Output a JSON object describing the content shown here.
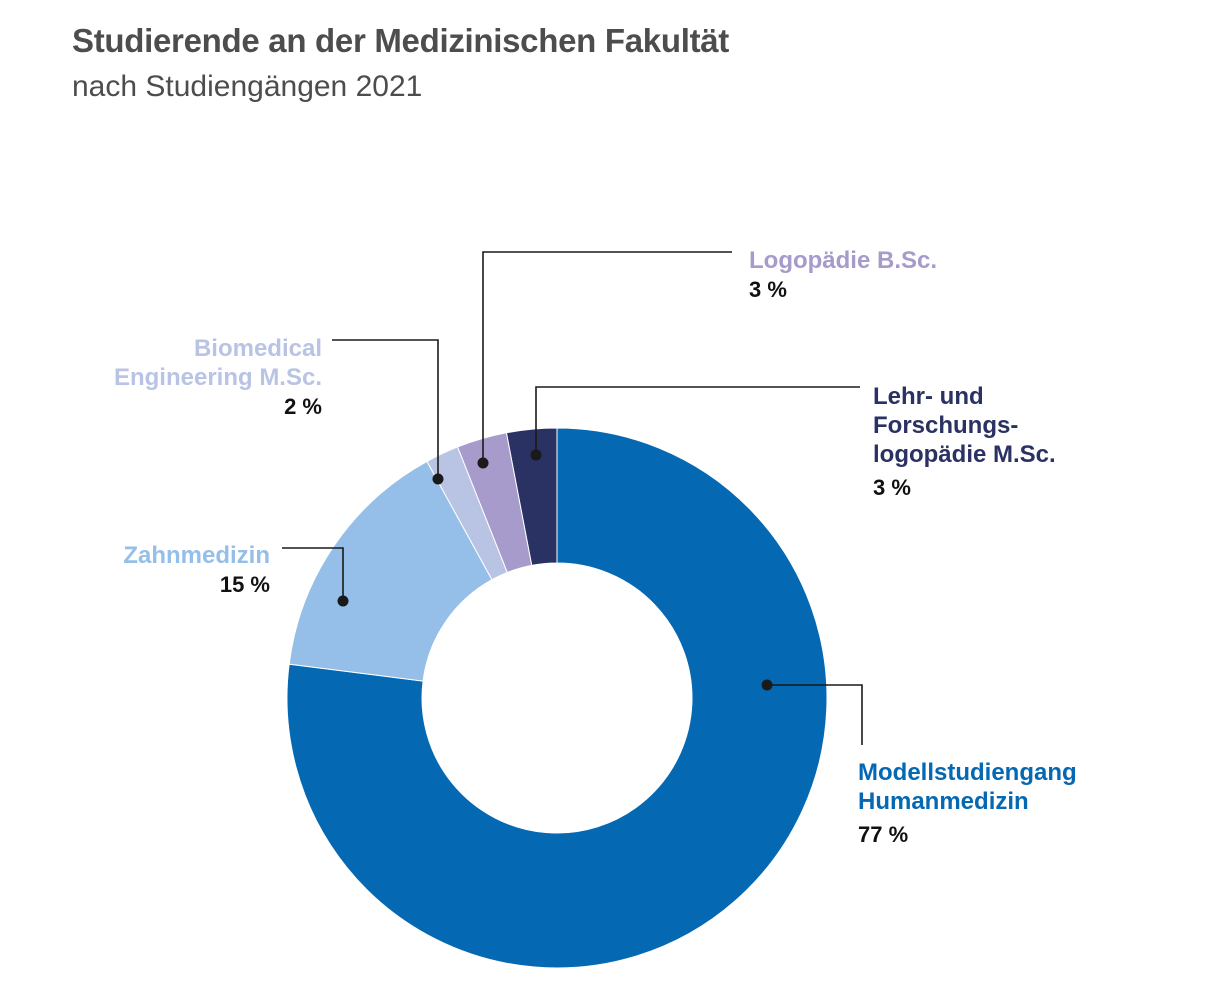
{
  "title": "Studierende an der Medizinischen Fakultät",
  "subtitle": "nach Studiengängen 2021",
  "chart_data": {
    "type": "pie",
    "variant": "donut",
    "slices": [
      {
        "key": "lehr",
        "label_lines": [
          "Lehr- und",
          "Forschungs-",
          "logopädie M.Sc."
        ],
        "pct_label": "3 %",
        "value": 3,
        "color": "#2a3163"
      },
      {
        "key": "modell",
        "label_lines": [
          "Modellstudiengang",
          "Humanmedizin"
        ],
        "pct_label": "77 %",
        "value": 77,
        "color": "#0568b3"
      },
      {
        "key": "zahn",
        "label_lines": [
          "Zahnmedizin"
        ],
        "pct_label": "15 %",
        "value": 15,
        "color": "#95bfe8"
      },
      {
        "key": "biomed",
        "label_lines": [
          "Biomedical",
          "Engineering M.Sc."
        ],
        "pct_label": "2 %",
        "value": 2,
        "color": "#b9c4e5"
      },
      {
        "key": "logo",
        "label_lines": [
          "Logopädie B.Sc."
        ],
        "pct_label": "3 %",
        "value": 3,
        "color": "#a69bcb"
      }
    ]
  }
}
